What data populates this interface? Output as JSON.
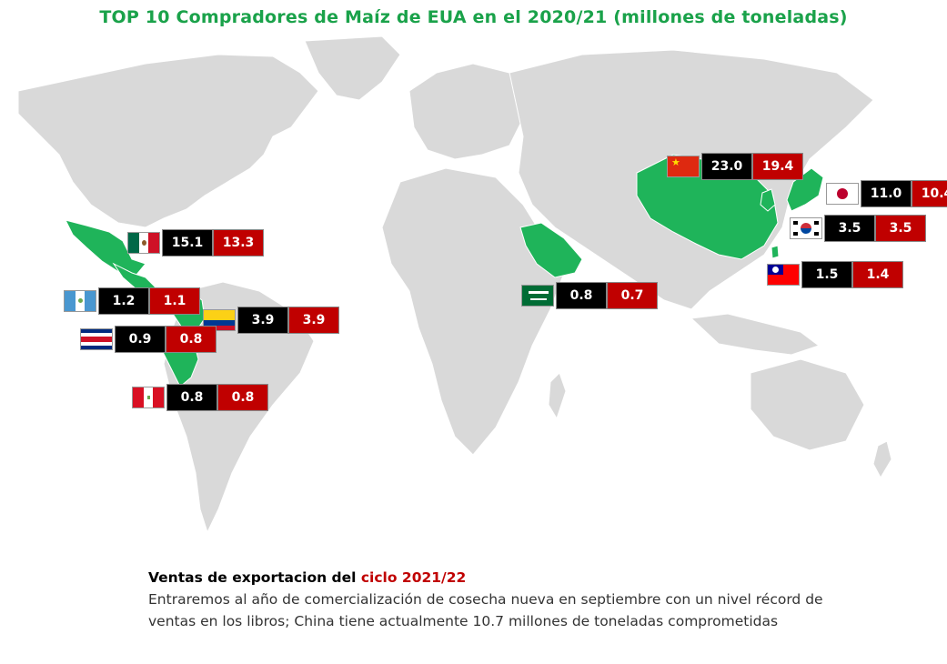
{
  "title": "TOP 10 Compradores de Maíz de EUA en el 2020/21 (millones de toneladas)",
  "colors": {
    "highlight": "#1fb45a",
    "land": "#d9d9d9",
    "value_first": "#000000",
    "value_second": "#c00000",
    "title": "#1aa24a"
  },
  "markers": [
    {
      "country": "China",
      "flag": "china",
      "v1": "23.0",
      "v2": "19.4"
    },
    {
      "country": "Japón",
      "flag": "japan",
      "v1": "11.0",
      "v2": "10.4"
    },
    {
      "country": "Corea del Sur",
      "flag": "korea",
      "v1": "3.5",
      "v2": "3.5"
    },
    {
      "country": "Taiwán",
      "flag": "taiwan",
      "v1": "1.5",
      "v2": "1.4"
    },
    {
      "country": "Arabia Saudita",
      "flag": "saudi",
      "v1": "0.8",
      "v2": "0.7"
    },
    {
      "country": "México",
      "flag": "mexico",
      "v1": "15.1",
      "v2": "13.3"
    },
    {
      "country": "Guatemala",
      "flag": "guatemala",
      "v1": "1.2",
      "v2": "1.1"
    },
    {
      "country": "Colombia",
      "flag": "colombia",
      "v1": "3.9",
      "v2": "3.9"
    },
    {
      "country": "Costa Rica",
      "flag": "costarica",
      "v1": "0.9",
      "v2": "0.8"
    },
    {
      "country": "Perú",
      "flag": "peru",
      "v1": "0.8",
      "v2": "0.8"
    }
  ],
  "note": {
    "heading": "Ventas de exportacion del ",
    "heading_highlight": "ciclo 2021/22",
    "body": "Entraremos al año de comercialización de cosecha nueva en septiembre con un nivel récord de ventas en los libros; China tiene actualmente 10.7 millones de toneladas comprometidas"
  }
}
